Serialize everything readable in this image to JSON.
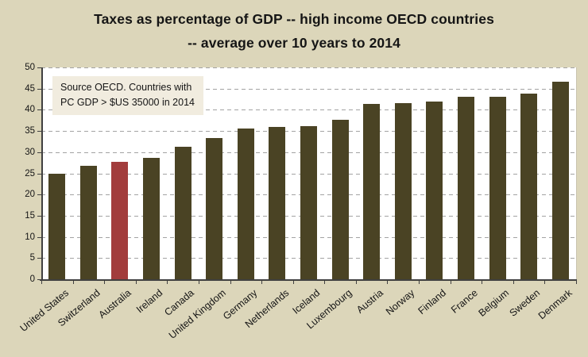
{
  "title": {
    "line1": "Taxes as percentage of GDP -- high income OECD countries",
    "line2": "-- average over 10 years to 2014"
  },
  "annotation": {
    "line1": "Source OECD.  Countries with",
    "line2": "PC GDP > $US 35000  in 2014"
  },
  "chart_data": {
    "type": "bar",
    "title": "Taxes as percentage of GDP -- high income OECD countries -- average over 10 years to 2014",
    "categories": [
      "United States",
      "Switzerland",
      "Australia",
      "Ireland",
      "Canada",
      "United Kingdom",
      "Germany",
      "Netherlands",
      "Iceland",
      "Luxembourg",
      "Austria",
      "Norway",
      "Finland",
      "France",
      "Belgium",
      "Sweden",
      "Denmark"
    ],
    "values": [
      25.0,
      26.7,
      27.7,
      28.7,
      31.3,
      33.4,
      35.5,
      36.0,
      36.1,
      37.7,
      41.3,
      41.5,
      42.0,
      43.0,
      43.1,
      43.9,
      46.6
    ],
    "highlight_category": "Australia",
    "highlight_index": 2,
    "xlabel": "",
    "ylabel": "",
    "ylim": [
      0,
      50
    ],
    "ytick_step": 5,
    "grid": true,
    "legend": "none",
    "colors": {
      "bar": "#4a4324",
      "highlight": "#a23c3c",
      "background": "#dcd6ba",
      "plot_background": "#ffffff",
      "gridline": "#a3a3a3",
      "axis": "#404040",
      "text": "#151515",
      "annotation_background": "#f1ecdf"
    }
  }
}
